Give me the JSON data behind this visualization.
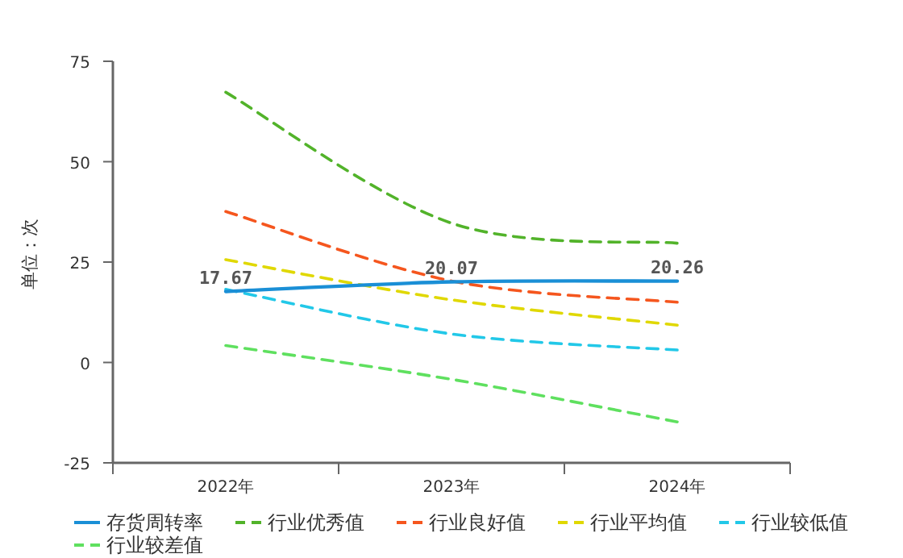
{
  "chart_data": {
    "type": "line",
    "ylabel": "单位：次",
    "categories": [
      "2022年",
      "2023年",
      "2024年"
    ],
    "ylim": [
      -25,
      75
    ],
    "yticks": [
      -25,
      0,
      25,
      50,
      75
    ],
    "grid": false,
    "legend": "bottom",
    "marker": "none",
    "series": [
      {
        "name": "存货周转率",
        "color": "#1a8fd6",
        "line_style": "solid",
        "values": [
          17.67,
          20.07,
          20.26
        ],
        "value_labels": [
          "17.67",
          "20.07",
          "20.26"
        ]
      },
      {
        "name": "行业优秀值",
        "color": "#52b32a",
        "line_style": "dashed",
        "values": [
          67.3,
          34.7,
          29.7
        ]
      },
      {
        "name": "行业良好值",
        "color": "#f5561e",
        "line_style": "dashed",
        "values": [
          37.6,
          20.3,
          15.0
        ]
      },
      {
        "name": "行业平均值",
        "color": "#e0d800",
        "line_style": "dashed",
        "values": [
          25.6,
          15.6,
          9.3
        ]
      },
      {
        "name": "行业较低值",
        "color": "#22c8e8",
        "line_style": "dashed",
        "values": [
          18.2,
          7.1,
          3.1
        ]
      },
      {
        "name": "行业较差值",
        "color": "#5fe05f",
        "line_style": "dashed",
        "values": [
          4.2,
          -4.2,
          -14.8
        ]
      }
    ]
  }
}
